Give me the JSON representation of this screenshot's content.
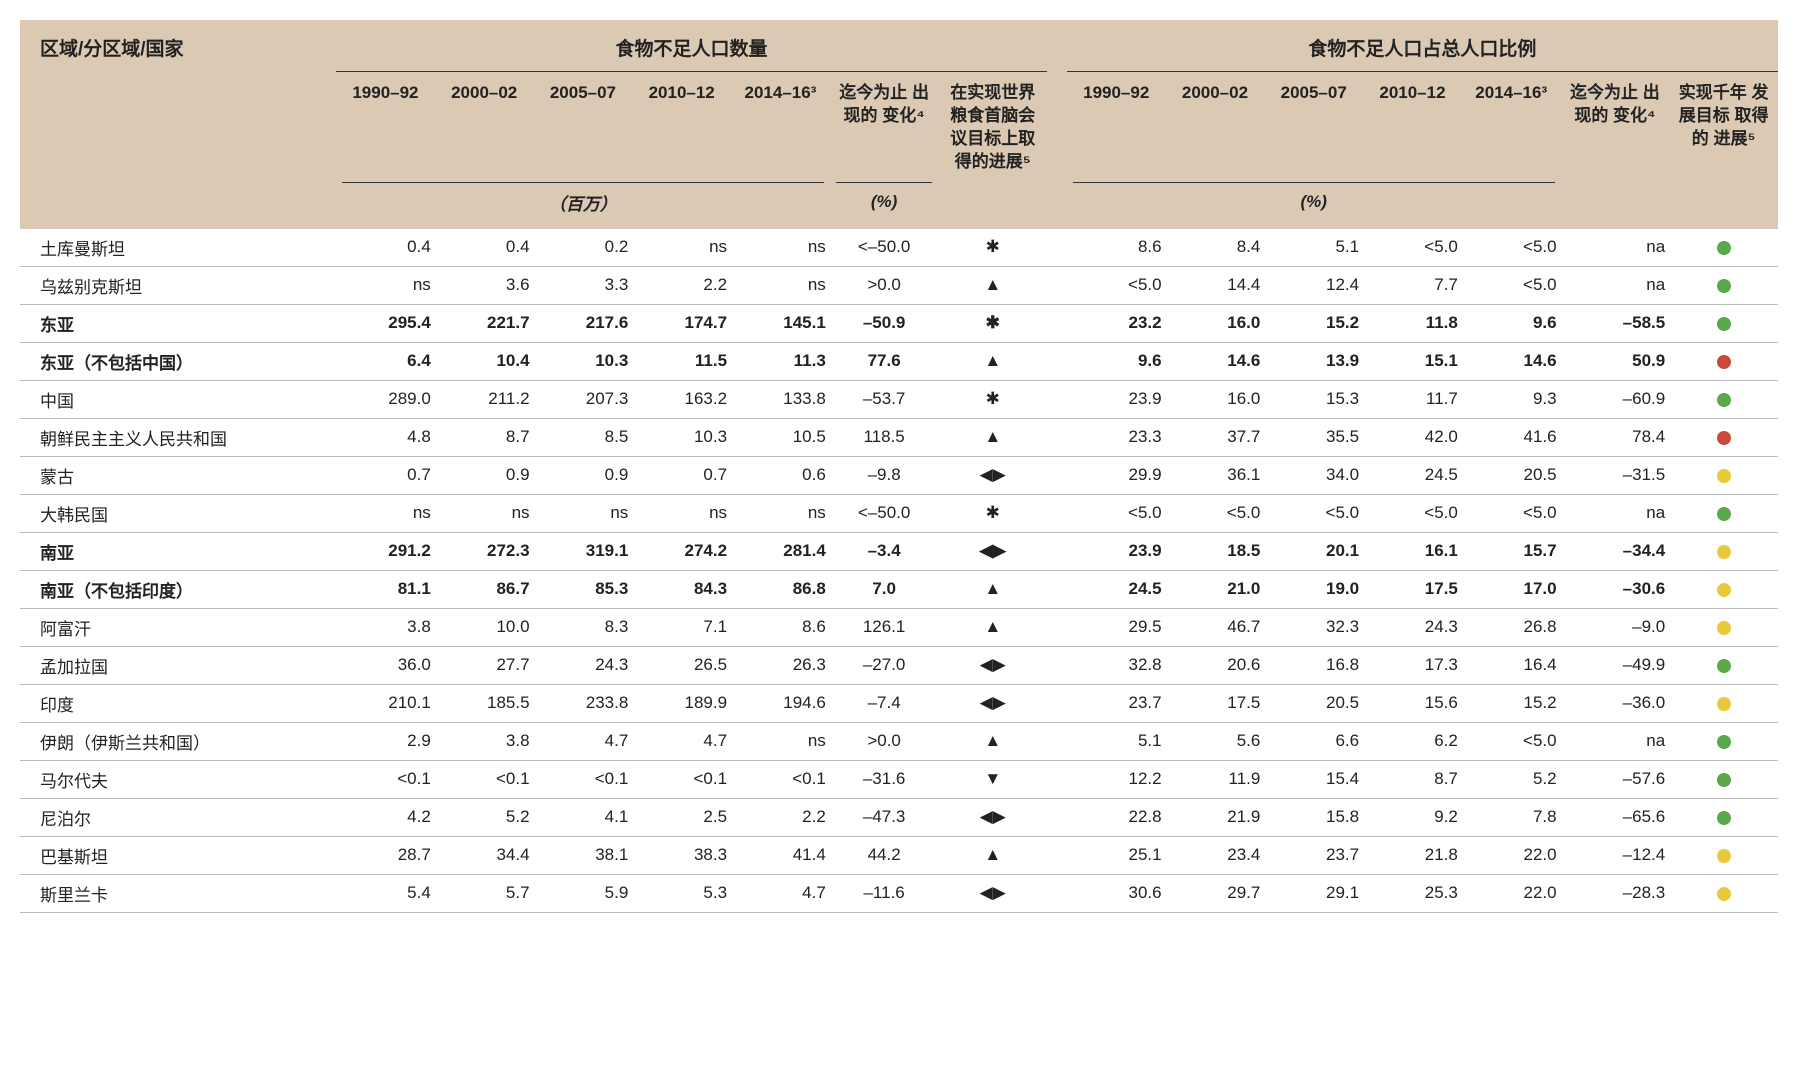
{
  "headers": {
    "region": "区域/分区域/国家",
    "group_number": "食物不足人口数量",
    "group_prevalence": "食物不足人口占总人口比例",
    "periods": [
      "1990–92",
      "2000–02",
      "2005–07",
      "2010–12",
      "2014–16³"
    ],
    "change_so_far": "迄今为止\n出现的\n变化⁴",
    "wfs_progress": "在实现世界\n粮食首脑会\n议目标上取\n得的进展⁵",
    "mdg_progress": "实现千年\n发展目标\n取得的\n进展⁵",
    "unit_millions": "（百万）",
    "unit_pct": "(%)"
  },
  "symbols": {
    "star": "✱",
    "up": "▲",
    "down": "▼",
    "lr": "◀▶"
  },
  "colors": {
    "green": "#5aa84a",
    "yellow": "#e8c93a",
    "red": "#c94a3a",
    "header_bg": "#dcc9b4"
  },
  "rows": [
    {
      "name": "土库曼斯坦",
      "bold": false,
      "num": [
        "0.4",
        "0.4",
        "0.2",
        "ns",
        "ns"
      ],
      "numChange": "<–50.0",
      "wfs": "star",
      "prev": [
        "8.6",
        "8.4",
        "5.1",
        "<5.0",
        "<5.0"
      ],
      "prevChange": "na",
      "mdg": "green"
    },
    {
      "name": "乌兹别克斯坦",
      "bold": false,
      "num": [
        "ns",
        "3.6",
        "3.3",
        "2.2",
        "ns"
      ],
      "numChange": ">0.0",
      "wfs": "up",
      "prev": [
        "<5.0",
        "14.4",
        "12.4",
        "7.7",
        "<5.0"
      ],
      "prevChange": "na",
      "mdg": "green"
    },
    {
      "name": "东亚",
      "bold": true,
      "num": [
        "295.4",
        "221.7",
        "217.6",
        "174.7",
        "145.1"
      ],
      "numChange": "–50.9",
      "wfs": "star",
      "prev": [
        "23.2",
        "16.0",
        "15.2",
        "11.8",
        "9.6"
      ],
      "prevChange": "–58.5",
      "mdg": "green"
    },
    {
      "name": "东亚（不包括中国）",
      "bold": true,
      "num": [
        "6.4",
        "10.4",
        "10.3",
        "11.5",
        "11.3"
      ],
      "numChange": "77.6",
      "wfs": "up",
      "prev": [
        "9.6",
        "14.6",
        "13.9",
        "15.1",
        "14.6"
      ],
      "prevChange": "50.9",
      "mdg": "red"
    },
    {
      "name": "中国",
      "bold": false,
      "num": [
        "289.0",
        "211.2",
        "207.3",
        "163.2",
        "133.8"
      ],
      "numChange": "–53.7",
      "wfs": "star",
      "prev": [
        "23.9",
        "16.0",
        "15.3",
        "11.7",
        "9.3"
      ],
      "prevChange": "–60.9",
      "mdg": "green"
    },
    {
      "name": "朝鲜民主主义人民共和国",
      "bold": false,
      "num": [
        "4.8",
        "8.7",
        "8.5",
        "10.3",
        "10.5"
      ],
      "numChange": "118.5",
      "wfs": "up",
      "prev": [
        "23.3",
        "37.7",
        "35.5",
        "42.0",
        "41.6"
      ],
      "prevChange": "78.4",
      "mdg": "red"
    },
    {
      "name": "蒙古",
      "bold": false,
      "num": [
        "0.7",
        "0.9",
        "0.9",
        "0.7",
        "0.6"
      ],
      "numChange": "–9.8",
      "wfs": "lr",
      "prev": [
        "29.9",
        "36.1",
        "34.0",
        "24.5",
        "20.5"
      ],
      "prevChange": "–31.5",
      "mdg": "yellow"
    },
    {
      "name": "大韩民国",
      "bold": false,
      "num": [
        "ns",
        "ns",
        "ns",
        "ns",
        "ns"
      ],
      "numChange": "<–50.0",
      "wfs": "star",
      "prev": [
        "<5.0",
        "<5.0",
        "<5.0",
        "<5.0",
        "<5.0"
      ],
      "prevChange": "na",
      "mdg": "green"
    },
    {
      "name": "南亚",
      "bold": true,
      "num": [
        "291.2",
        "272.3",
        "319.1",
        "274.2",
        "281.4"
      ],
      "numChange": "–3.4",
      "wfs": "lr",
      "prev": [
        "23.9",
        "18.5",
        "20.1",
        "16.1",
        "15.7"
      ],
      "prevChange": "–34.4",
      "mdg": "yellow"
    },
    {
      "name": "南亚（不包括印度）",
      "bold": true,
      "num": [
        "81.1",
        "86.7",
        "85.3",
        "84.3",
        "86.8"
      ],
      "numChange": "7.0",
      "wfs": "up",
      "prev": [
        "24.5",
        "21.0",
        "19.0",
        "17.5",
        "17.0"
      ],
      "prevChange": "–30.6",
      "mdg": "yellow"
    },
    {
      "name": "阿富汗",
      "bold": false,
      "num": [
        "3.8",
        "10.0",
        "8.3",
        "7.1",
        "8.6"
      ],
      "numChange": "126.1",
      "wfs": "up",
      "prev": [
        "29.5",
        "46.7",
        "32.3",
        "24.3",
        "26.8"
      ],
      "prevChange": "–9.0",
      "mdg": "yellow"
    },
    {
      "name": "孟加拉国",
      "bold": false,
      "num": [
        "36.0",
        "27.7",
        "24.3",
        "26.5",
        "26.3"
      ],
      "numChange": "–27.0",
      "wfs": "lr",
      "prev": [
        "32.8",
        "20.6",
        "16.8",
        "17.3",
        "16.4"
      ],
      "prevChange": "–49.9",
      "mdg": "green"
    },
    {
      "name": "印度",
      "bold": false,
      "num": [
        "210.1",
        "185.5",
        "233.8",
        "189.9",
        "194.6"
      ],
      "numChange": "–7.4",
      "wfs": "lr",
      "prev": [
        "23.7",
        "17.5",
        "20.5",
        "15.6",
        "15.2"
      ],
      "prevChange": "–36.0",
      "mdg": "yellow"
    },
    {
      "name": "伊朗（伊斯兰共和国）",
      "bold": false,
      "num": [
        "2.9",
        "3.8",
        "4.7",
        "4.7",
        "ns"
      ],
      "numChange": ">0.0",
      "wfs": "up",
      "prev": [
        "5.1",
        "5.6",
        "6.6",
        "6.2",
        "<5.0"
      ],
      "prevChange": "na",
      "mdg": "green"
    },
    {
      "name": "马尔代夫",
      "bold": false,
      "num": [
        "<0.1",
        "<0.1",
        "<0.1",
        "<0.1",
        "<0.1"
      ],
      "numChange": "–31.6",
      "wfs": "down",
      "prev": [
        "12.2",
        "11.9",
        "15.4",
        "8.7",
        "5.2"
      ],
      "prevChange": "–57.6",
      "mdg": "green"
    },
    {
      "name": "尼泊尔",
      "bold": false,
      "num": [
        "4.2",
        "5.2",
        "4.1",
        "2.5",
        "2.2"
      ],
      "numChange": "–47.3",
      "wfs": "lr",
      "prev": [
        "22.8",
        "21.9",
        "15.8",
        "9.2",
        "7.8"
      ],
      "prevChange": "–65.6",
      "mdg": "green"
    },
    {
      "name": "巴基斯坦",
      "bold": false,
      "num": [
        "28.7",
        "34.4",
        "38.1",
        "38.3",
        "41.4"
      ],
      "numChange": "44.2",
      "wfs": "up",
      "prev": [
        "25.1",
        "23.4",
        "23.7",
        "21.8",
        "22.0"
      ],
      "prevChange": "–12.4",
      "mdg": "yellow"
    },
    {
      "name": "斯里兰卡",
      "bold": false,
      "num": [
        "5.4",
        "5.7",
        "5.9",
        "5.3",
        "4.7"
      ],
      "numChange": "–11.6",
      "wfs": "lr",
      "prev": [
        "30.6",
        "29.7",
        "29.1",
        "25.3",
        "22.0"
      ],
      "prevChange": "–28.3",
      "mdg": "yellow"
    }
  ]
}
